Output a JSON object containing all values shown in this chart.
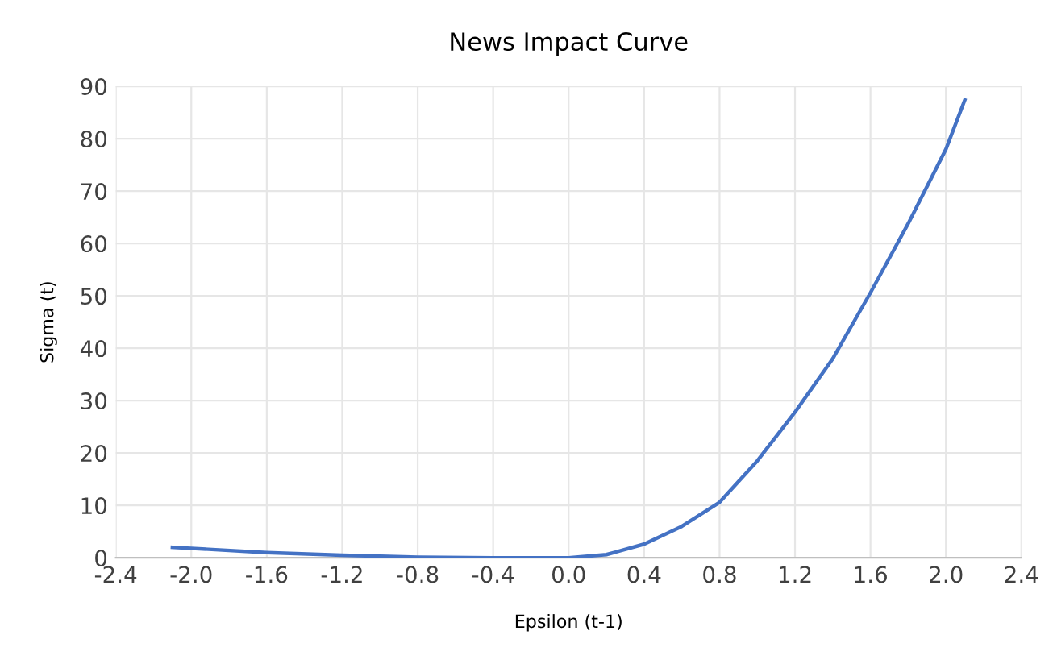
{
  "chart_data": {
    "type": "line",
    "title": "News Impact Curve",
    "xlabel": "Epsilon (t-1)",
    "ylabel": "Sigma (t)",
    "x": [
      -2.1,
      -1.6,
      -1.2,
      -0.8,
      -0.4,
      0.0,
      0.2,
      0.4,
      0.6,
      0.8,
      1.0,
      1.2,
      1.4,
      1.6,
      1.8,
      2.0,
      2.1
    ],
    "series": [
      {
        "color": "#4472c4",
        "values": [
          2.0,
          1.0,
          0.5,
          0.1,
          0.0,
          0.0,
          0.6,
          2.6,
          6,
          10.6,
          18.5,
          27.8,
          38,
          50.6,
          63.8,
          78,
          87.4
        ]
      }
    ],
    "xlim": [
      -2.4,
      2.4
    ],
    "xticks": [
      {
        "value": -2.4,
        "label": "-2.4"
      },
      {
        "value": -2.0,
        "label": "-2.0"
      },
      {
        "value": -1.6,
        "label": "-1.6"
      },
      {
        "value": -1.2,
        "label": "-1.2"
      },
      {
        "value": -0.8,
        "label": "-0.8"
      },
      {
        "value": -0.4,
        "label": "-0.4"
      },
      {
        "value": 0.0,
        "label": "0.0"
      },
      {
        "value": 0.4,
        "label": "0.4"
      },
      {
        "value": 0.8,
        "label": "0.8"
      },
      {
        "value": 1.2,
        "label": "1.2"
      },
      {
        "value": 1.6,
        "label": "1.6"
      },
      {
        "value": 2.0,
        "label": "2.0"
      },
      {
        "value": 2.4,
        "label": "2.4"
      }
    ],
    "ylim": [
      0,
      90
    ],
    "yticks": [
      0,
      10,
      20,
      30,
      40,
      50,
      60,
      70,
      80,
      90
    ],
    "grid": true,
    "marker": "none",
    "line_style": "solid",
    "legend": false
  }
}
